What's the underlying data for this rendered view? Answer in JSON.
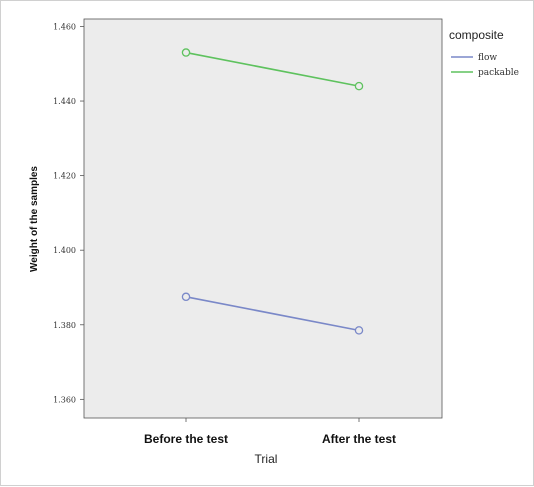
{
  "chart_data": {
    "type": "line",
    "categories": [
      "Before the test",
      "After the test"
    ],
    "xlabel": "Trial",
    "ylabel": "Weight of the samples",
    "ylim": [
      1.355,
      1.462
    ],
    "yticks": [
      "1.460",
      "1.440",
      "1.420",
      "1.400",
      "1.380",
      "1.360"
    ],
    "legend_title": "composite",
    "legend_position": "right",
    "grid": false,
    "series": [
      {
        "name": "flow",
        "values": [
          1.3875,
          1.3785
        ],
        "color": "#7a88c8"
      },
      {
        "name": "packable",
        "values": [
          1.453,
          1.444
        ],
        "color": "#5ec25e"
      }
    ]
  }
}
